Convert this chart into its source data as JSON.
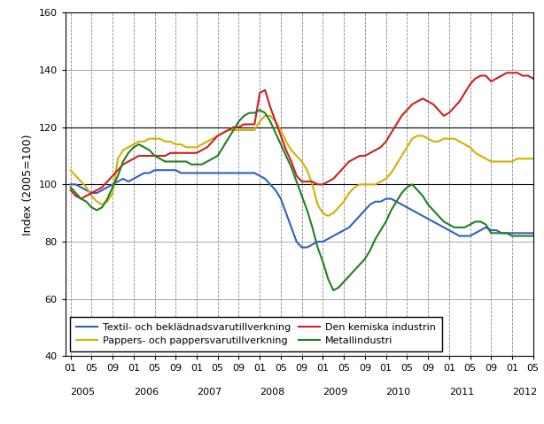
{
  "title": "",
  "ylabel": "Index (2005=100)",
  "ylim": [
    40,
    160
  ],
  "yticks": [
    40,
    60,
    80,
    100,
    120,
    140,
    160
  ],
  "plot_bg_color": "#ffffff",
  "series": {
    "textil": {
      "label": "Textil- och beklädnadsvarutillverkning",
      "color": "#3060c0",
      "linewidth": 1.5,
      "data": [
        100,
        100,
        99,
        98,
        97,
        97,
        98,
        99,
        100,
        101,
        102,
        101,
        102,
        103,
        104,
        104,
        105,
        105,
        105,
        105,
        105,
        104,
        104,
        104,
        104,
        104,
        104,
        104,
        104,
        104,
        104,
        104,
        104,
        104,
        104,
        104,
        103,
        102,
        100,
        98,
        95,
        90,
        85,
        80,
        78,
        78,
        79,
        80,
        80,
        81,
        82,
        83,
        84,
        85,
        87,
        89,
        91,
        93,
        94,
        94,
        95,
        95,
        94,
        93,
        92,
        91,
        90,
        89,
        88,
        87,
        86,
        85,
        84,
        83,
        82,
        82,
        82,
        83,
        84,
        85,
        84,
        84,
        83,
        83,
        83,
        83,
        83,
        83,
        83
      ]
    },
    "pappers": {
      "label": "Pappers- och pappersvarutillverkning",
      "color": "#d4b000",
      "linewidth": 1.5,
      "data": [
        105,
        103,
        101,
        99,
        96,
        94,
        93,
        94,
        97,
        109,
        112,
        113,
        114,
        115,
        115,
        116,
        116,
        116,
        115,
        115,
        114,
        114,
        113,
        113,
        113,
        114,
        115,
        116,
        117,
        118,
        119,
        119,
        119,
        119,
        119,
        119,
        122,
        124,
        124,
        122,
        119,
        115,
        112,
        110,
        108,
        105,
        100,
        93,
        90,
        89,
        90,
        92,
        94,
        97,
        99,
        100,
        100,
        100,
        100,
        101,
        102,
        104,
        107,
        110,
        113,
        116,
        117,
        117,
        116,
        115,
        115,
        116,
        116,
        116,
        115,
        114,
        113,
        111,
        110,
        109,
        108,
        108,
        108,
        108,
        108,
        109,
        109,
        109,
        109
      ]
    },
    "kemiska": {
      "label": "Den kemiska industrin",
      "color": "#cc2020",
      "linewidth": 1.5,
      "data": [
        98,
        96,
        95,
        96,
        97,
        98,
        99,
        101,
        103,
        105,
        107,
        108,
        109,
        110,
        110,
        110,
        110,
        110,
        110,
        111,
        111,
        111,
        111,
        111,
        111,
        112,
        113,
        115,
        117,
        118,
        119,
        120,
        120,
        121,
        121,
        121,
        132,
        133,
        127,
        122,
        117,
        112,
        108,
        103,
        101,
        101,
        101,
        100,
        100,
        101,
        102,
        104,
        106,
        108,
        109,
        110,
        110,
        111,
        112,
        113,
        115,
        118,
        121,
        124,
        126,
        128,
        129,
        130,
        129,
        128,
        126,
        124,
        125,
        127,
        129,
        132,
        135,
        137,
        138,
        138,
        136,
        137,
        138,
        139,
        139,
        139,
        138,
        138,
        137
      ]
    },
    "metall": {
      "label": "Metallindustri",
      "color": "#208020",
      "linewidth": 1.5,
      "data": [
        99,
        97,
        95,
        94,
        92,
        91,
        92,
        95,
        99,
        103,
        108,
        111,
        113,
        114,
        113,
        112,
        110,
        109,
        108,
        108,
        108,
        108,
        108,
        107,
        107,
        107,
        108,
        109,
        110,
        113,
        116,
        119,
        122,
        124,
        125,
        125,
        126,
        125,
        122,
        118,
        114,
        110,
        106,
        101,
        96,
        91,
        85,
        78,
        73,
        67,
        63,
        64,
        66,
        68,
        70,
        72,
        74,
        77,
        81,
        84,
        87,
        91,
        94,
        97,
        99,
        100,
        98,
        96,
        93,
        91,
        89,
        87,
        86,
        85,
        85,
        85,
        86,
        87,
        87,
        86,
        83,
        83,
        83,
        83,
        82,
        82,
        82,
        82,
        82
      ]
    }
  },
  "n_points": 89,
  "tick_fontsize": 8,
  "ylabel_fontsize": 9,
  "legend_fontsize": 8
}
